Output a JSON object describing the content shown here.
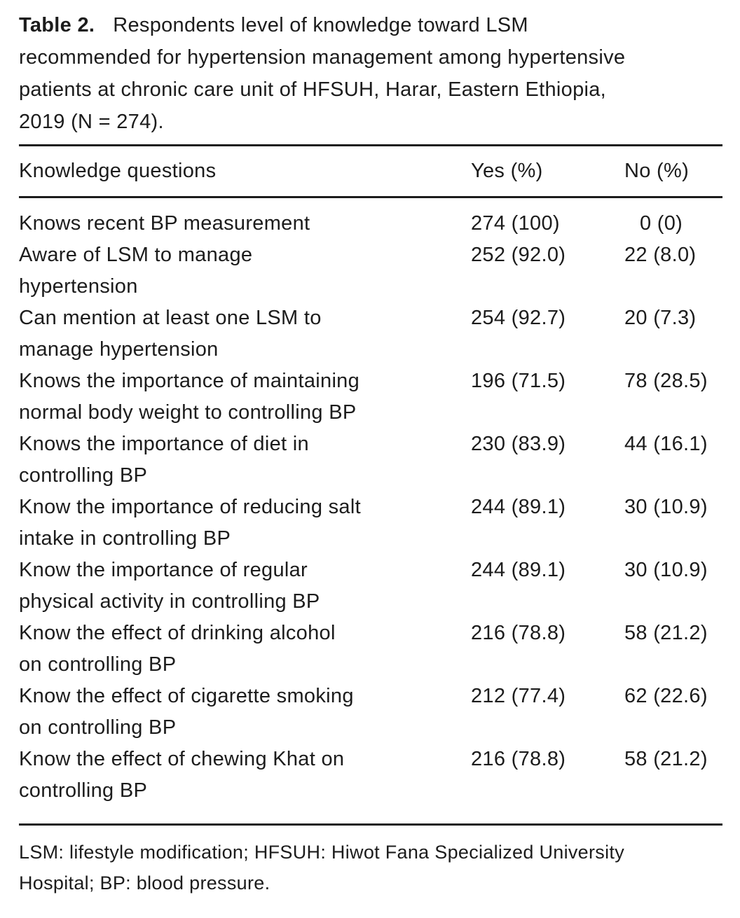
{
  "table": {
    "label": "Table 2.",
    "caption": "Respondents level of knowledge toward LSM\nrecommended for hypertension management among hypertensive\npatients at chronic care unit of HFSUH, Harar, Eastern Ethiopia,\n2019 (N = 274).",
    "columns": {
      "question": "Knowledge questions",
      "yes": "Yes (%)",
      "no": "No (%)"
    },
    "rows": [
      {
        "question": "Knows recent BP measurement",
        "yes": "274 (100)",
        "no": "0 (0)"
      },
      {
        "question": "Aware of LSM to manage\nhypertension",
        "yes": "252 (92.0)",
        "no": "22 (8.0)"
      },
      {
        "question": "Can mention at least one LSM to\nmanage hypertension",
        "yes": "254 (92.7)",
        "no": "20 (7.3)"
      },
      {
        "question": "Knows the importance of maintaining\nnormal body weight to controlling BP",
        "yes": "196 (71.5)",
        "no": "78 (28.5)"
      },
      {
        "question": "Knows the importance of diet in\ncontrolling BP",
        "yes": "230 (83.9)",
        "no": "44 (16.1)"
      },
      {
        "question": "Know the importance of reducing salt\nintake in controlling BP",
        "yes": "244 (89.1)",
        "no": "30 (10.9)"
      },
      {
        "question": "Know the importance of regular\nphysical activity in controlling BP",
        "yes": "244 (89.1)",
        "no": "30 (10.9)"
      },
      {
        "question": "Know the effect of drinking alcohol\non controlling BP",
        "yes": "216 (78.8)",
        "no": "58 (21.2)"
      },
      {
        "question": "Know the effect of cigarette smoking\non controlling BP",
        "yes": "212 (77.4)",
        "no": "62 (22.6)"
      },
      {
        "question": "Know the effect of chewing Khat on\ncontrolling BP",
        "yes": "216 (78.8)",
        "no": "58 (21.2)"
      }
    ],
    "footnote": "LSM: lifestyle modification; HFSUH: Hiwot Fana Specialized University\nHospital; BP: blood pressure."
  }
}
